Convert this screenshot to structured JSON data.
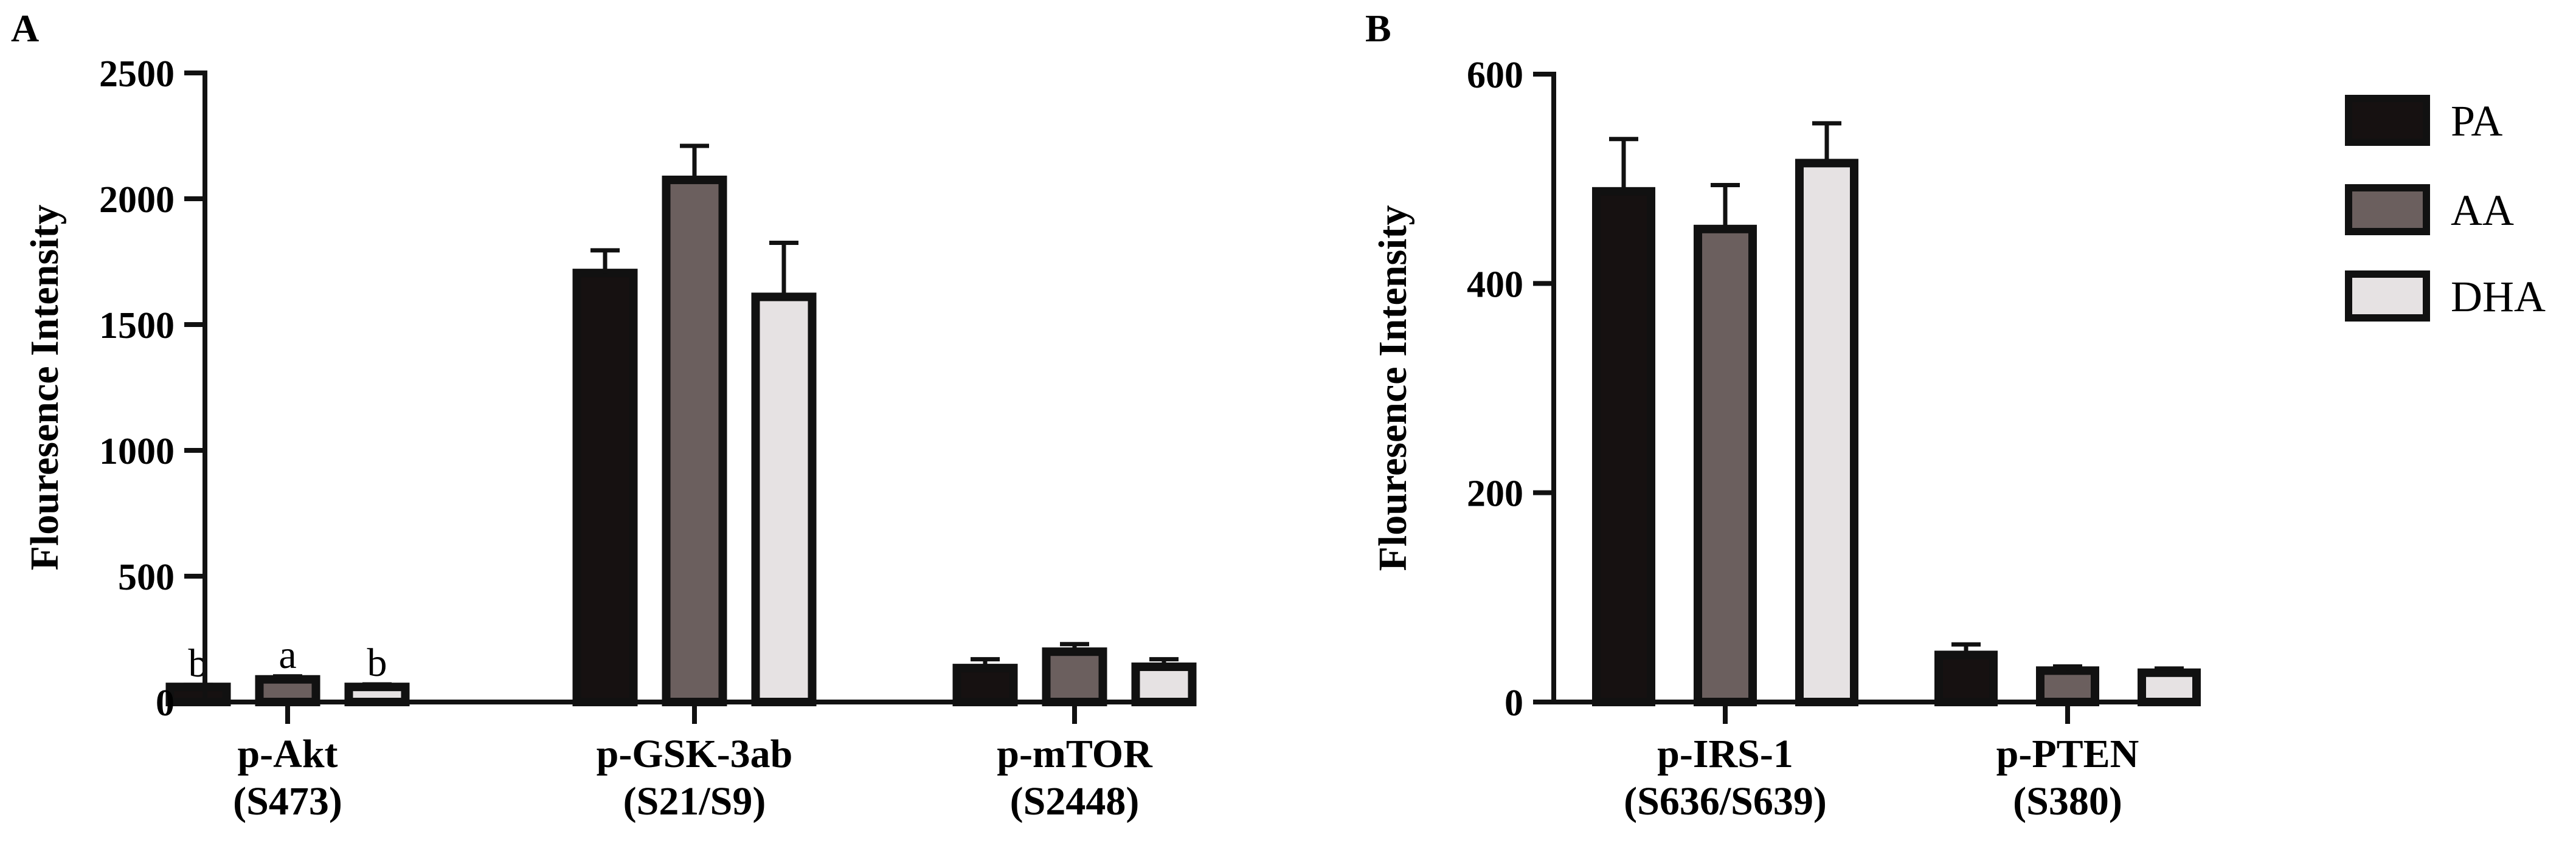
{
  "panels": [
    {
      "letter": "A",
      "chart_data": {
        "type": "bar",
        "ylabel": "Flouresence Intensity",
        "ylim": [
          0,
          2500
        ],
        "yticks": [
          0,
          500,
          1000,
          1500,
          2000,
          2500
        ],
        "categories": [
          {
            "line1": "p-Akt",
            "line2": "(S473)"
          },
          {
            "line1": "p-GSK-3ab",
            "line2": "(S21/S9)"
          },
          {
            "line1": "p-mTOR",
            "line2": "(S2448)"
          }
        ],
        "series": [
          {
            "name": "PA",
            "values": [
              60,
              1705,
              135
            ],
            "errors": [
              8,
              90,
              35
            ]
          },
          {
            "name": "AA",
            "values": [
              90,
              2075,
              200
            ],
            "errors": [
              12,
              135,
              30
            ]
          },
          {
            "name": "DHA",
            "values": [
              60,
              1610,
              140
            ],
            "errors": [
              10,
              215,
              30
            ]
          }
        ],
        "annotations": [
          {
            "category": 0,
            "series": 0,
            "text": "b"
          },
          {
            "category": 0,
            "series": 1,
            "text": "a"
          },
          {
            "category": 0,
            "series": 2,
            "text": "b"
          }
        ]
      }
    },
    {
      "letter": "B",
      "chart_data": {
        "type": "bar",
        "ylabel": "Flouresence Intensity",
        "ylim": [
          0,
          600
        ],
        "yticks": [
          0,
          200,
          400,
          600
        ],
        "categories": [
          {
            "line1": "p-IRS-1",
            "line2": "(S636/S639)"
          },
          {
            "line1": "p-PTEN",
            "line2": "(S380)"
          }
        ],
        "series": [
          {
            "name": "PA",
            "values": [
              488,
              45
            ],
            "errors": [
              50,
              10
            ]
          },
          {
            "name": "AA",
            "values": [
              452,
              30
            ],
            "errors": [
              42,
              4
            ]
          },
          {
            "name": "DHA",
            "values": [
              515,
              28
            ],
            "errors": [
              38,
              4
            ]
          }
        ],
        "annotations": []
      }
    }
  ],
  "legend": {
    "entries": [
      {
        "name": "PA",
        "color": "#161111"
      },
      {
        "name": "AA",
        "color": "#6b5f5e"
      },
      {
        "name": "DHA",
        "color": "#e6e2e3"
      }
    ]
  }
}
